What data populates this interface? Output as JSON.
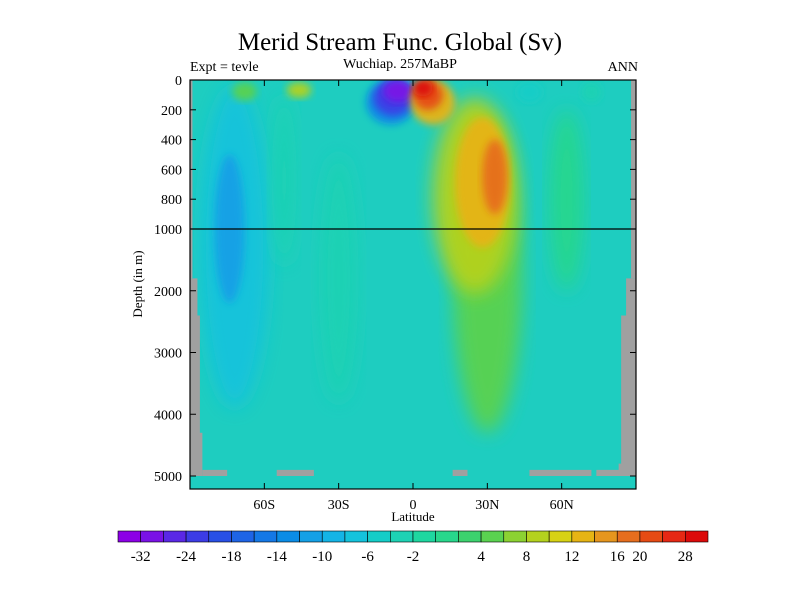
{
  "chart_data": {
    "type": "heatmap",
    "title": "Merid Stream Func. Global (Sv)",
    "subtitle_left": "Expt = tevle",
    "subtitle_center": "Wuchiap. 257MaBP",
    "subtitle_right": "ANN",
    "xlabel": "Latitude",
    "ylabel": "Depth (in m)",
    "xlim": [
      -90,
      90
    ],
    "x_ticks": [
      -60,
      -30,
      0,
      30,
      60
    ],
    "x_tick_labels": [
      "60S",
      "30S",
      "0",
      "30N",
      "60N"
    ],
    "y_ticks_upper": [
      0,
      200,
      400,
      600,
      800,
      1000
    ],
    "y_ticks_lower": [
      1000,
      2000,
      3000,
      4000,
      5000
    ],
    "y_tick_labels": [
      "0",
      "200",
      "400",
      "600",
      "800",
      "1000",
      "2000",
      "3000",
      "4000",
      "5000"
    ],
    "depth_break": 1000,
    "colorbar_levels": [
      -36,
      -32,
      -28,
      -24,
      -20,
      -18,
      -16,
      -14,
      -12,
      -10,
      -8,
      -6,
      -4,
      -2,
      0,
      2,
      4,
      6,
      8,
      10,
      12,
      14,
      16,
      20,
      24,
      28,
      32
    ],
    "colorbar_labels": [
      "-32",
      "-24",
      "-18",
      "-14",
      "-10",
      "-6",
      "-2",
      "4",
      "8",
      "12",
      "16",
      "20",
      "28"
    ],
    "colorbar_colors": [
      "#8c00e6",
      "#7a12e6",
      "#5a28e6",
      "#3c3ce6",
      "#2850e6",
      "#1e64e6",
      "#1478e6",
      "#0a8ce6",
      "#14a0e6",
      "#14b4e6",
      "#14c3dc",
      "#14cdc8",
      "#1ed2b4",
      "#1ed7a0",
      "#28d78c",
      "#3cd26e",
      "#5ad250",
      "#8cd232",
      "#b4d21e",
      "#d7d214",
      "#e6b414",
      "#e6961e",
      "#e66e1e",
      "#e64b14",
      "#e62814",
      "#dc0a0a"
    ],
    "features": [
      {
        "name": "northern-hemisphere-overturning-cell",
        "lat_range": [
          5,
          45
        ],
        "depth_range": [
          0,
          4400
        ],
        "peak_sv": 14
      },
      {
        "name": "equatorial-positive-cell",
        "lat_range": [
          0,
          15
        ],
        "depth_range": [
          0,
          300
        ],
        "peak_sv": 30
      },
      {
        "name": "equatorial-negative-cell",
        "lat_range": [
          -20,
          0
        ],
        "depth_range": [
          0,
          300
        ],
        "peak_sv": -32
      },
      {
        "name": "southern-deep-negative-band",
        "lat_range": [
          -85,
          -65
        ],
        "depth_range": [
          0,
          4000
        ],
        "peak_sv": -12
      }
    ],
    "land_color": "#a0a0a0",
    "background_value_sv": 0,
    "grid": false,
    "legend": "bottom-colorbar"
  }
}
